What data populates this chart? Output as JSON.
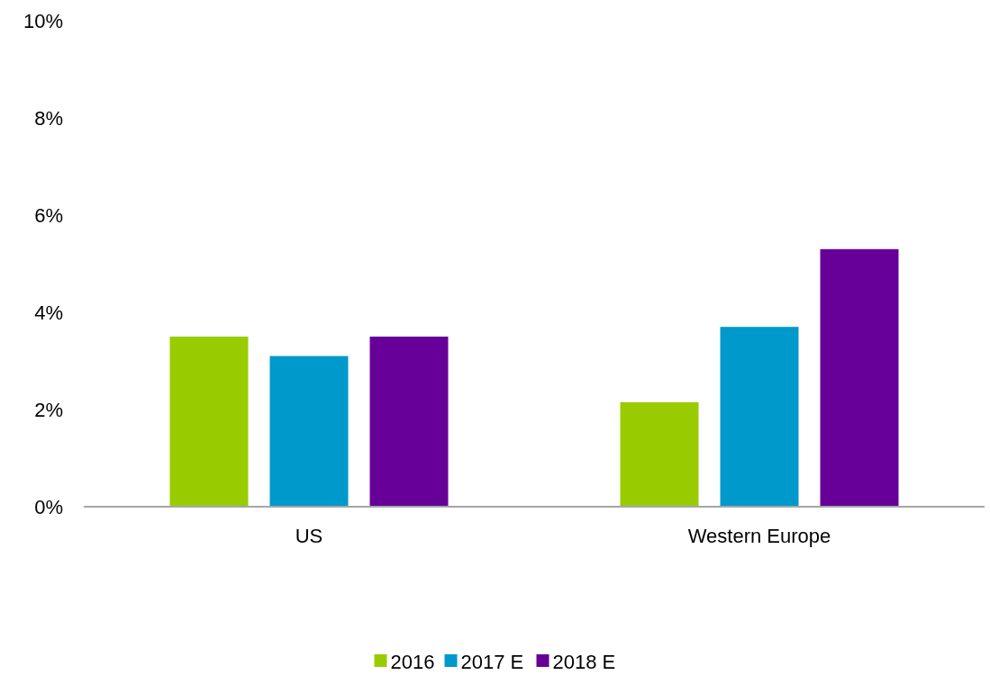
{
  "chart_data": {
    "type": "bar",
    "categories": [
      "US",
      "Western Europe"
    ],
    "series": [
      {
        "name": "2016",
        "color": "#99cc00",
        "values": [
          3.5,
          2.15
        ]
      },
      {
        "name": "2017 E",
        "color": "#0099cc",
        "values": [
          3.1,
          3.7
        ]
      },
      {
        "name": "2018 E",
        "color": "#660099",
        "values": [
          3.5,
          5.3
        ]
      }
    ],
    "ylim": [
      0,
      10
    ],
    "yticks": [
      {
        "value": 0,
        "label": "0%"
      },
      {
        "value": 2,
        "label": "2%"
      },
      {
        "value": 4,
        "label": "4%"
      },
      {
        "value": 6,
        "label": "6%"
      },
      {
        "value": 8,
        "label": "8%"
      },
      {
        "value": 10,
        "label": "10%"
      }
    ],
    "grid": false,
    "legend": "bottom"
  }
}
